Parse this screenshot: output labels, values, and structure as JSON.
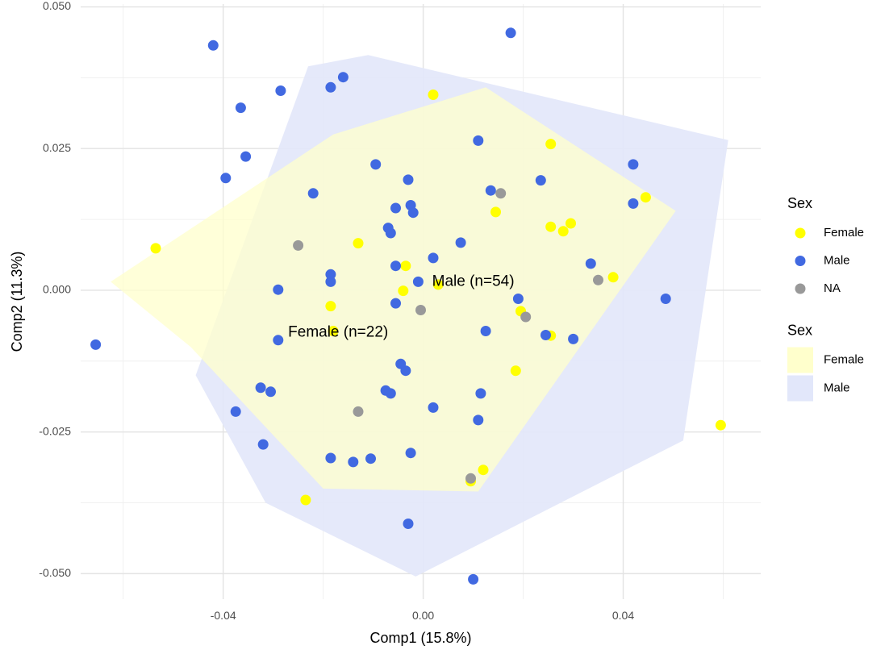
{
  "chart_data": {
    "type": "scatter",
    "xlabel": "Comp1 (15.8%)",
    "ylabel": "Comp2 (11.3%)",
    "xlim": [
      -0.0685,
      0.0675
    ],
    "ylim": [
      -0.0545,
      0.0505
    ],
    "x_ticks": [
      -0.04,
      0.0,
      0.04
    ],
    "x_tick_labels": [
      "-0.04",
      "0.00",
      "0.04"
    ],
    "x_minor_ticks": [
      -0.06,
      -0.02,
      0.02,
      0.06
    ],
    "y_ticks": [
      0.05,
      0.025,
      0.0,
      -0.025,
      -0.05
    ],
    "y_tick_labels": [
      "0.050",
      "0.025",
      "0.000",
      "-0.025",
      "-0.050"
    ],
    "y_minor_ticks": [
      0.0375,
      0.0125,
      -0.0125,
      -0.0375
    ],
    "grid": true,
    "series": [
      {
        "name": "Female",
        "color": "#FFFF00",
        "points": [
          [
            -0.0535,
            0.0074
          ],
          [
            0.002,
            0.0345
          ],
          [
            0.0255,
            0.0258
          ],
          [
            0.0445,
            0.0164
          ],
          [
            0.0145,
            0.0138
          ],
          [
            0.0295,
            0.0118
          ],
          [
            0.0255,
            0.0112
          ],
          [
            0.028,
            0.0104
          ],
          [
            -0.013,
            0.0083
          ],
          [
            -0.0035,
            0.0043
          ],
          [
            0.038,
            0.0023
          ],
          [
            -0.004,
            -0.0001
          ],
          [
            -0.0185,
            -0.0028
          ],
          [
            0.0195,
            -0.0037
          ],
          [
            -0.018,
            -0.0072
          ],
          [
            0.0255,
            -0.008
          ],
          [
            0.0185,
            -0.0142
          ],
          [
            0.0595,
            -0.0238
          ],
          [
            0.012,
            -0.0317
          ],
          [
            0.0095,
            -0.0337
          ],
          [
            -0.0235,
            -0.037
          ],
          [
            0.003,
            0.001
          ]
        ]
      },
      {
        "name": "Male",
        "color": "#4169E1",
        "points": [
          [
            -0.042,
            0.0432
          ],
          [
            0.0175,
            0.0454
          ],
          [
            -0.016,
            0.0376
          ],
          [
            -0.0285,
            0.0352
          ],
          [
            -0.0185,
            0.0358
          ],
          [
            -0.0365,
            0.0322
          ],
          [
            -0.0355,
            0.0236
          ],
          [
            -0.0395,
            0.0198
          ],
          [
            -0.0095,
            0.0222
          ],
          [
            0.011,
            0.0264
          ],
          [
            -0.003,
            0.0195
          ],
          [
            0.0235,
            0.0194
          ],
          [
            0.042,
            0.0222
          ],
          [
            -0.022,
            0.0171
          ],
          [
            0.0135,
            0.0176
          ],
          [
            -0.0055,
            0.0145
          ],
          [
            -0.0025,
            0.015
          ],
          [
            -0.002,
            0.0137
          ],
          [
            0.042,
            0.0153
          ],
          [
            -0.007,
            0.011
          ],
          [
            -0.0065,
            0.0101
          ],
          [
            0.0075,
            0.0084
          ],
          [
            0.002,
            0.0057
          ],
          [
            -0.0055,
            0.0043
          ],
          [
            0.0335,
            0.0047
          ],
          [
            -0.0185,
            0.0028
          ],
          [
            -0.0185,
            0.0015
          ],
          [
            -0.001,
            0.0015
          ],
          [
            -0.029,
            0.0001
          ],
          [
            0.019,
            -0.0015
          ],
          [
            0.0485,
            -0.0015
          ],
          [
            -0.0055,
            -0.0023
          ],
          [
            0.0125,
            -0.0072
          ],
          [
            0.0245,
            -0.0079
          ],
          [
            0.03,
            -0.0086
          ],
          [
            -0.029,
            -0.0088
          ],
          [
            -0.0655,
            -0.0096
          ],
          [
            -0.0045,
            -0.013
          ],
          [
            -0.0035,
            -0.0142
          ],
          [
            -0.0325,
            -0.0172
          ],
          [
            -0.0075,
            -0.0177
          ],
          [
            -0.0065,
            -0.0182
          ],
          [
            -0.0305,
            -0.0179
          ],
          [
            0.0115,
            -0.0182
          ],
          [
            0.002,
            -0.0207
          ],
          [
            -0.0375,
            -0.0214
          ],
          [
            0.011,
            -0.0229
          ],
          [
            -0.032,
            -0.0272
          ],
          [
            -0.0025,
            -0.0287
          ],
          [
            -0.0185,
            -0.0296
          ],
          [
            -0.0105,
            -0.0297
          ],
          [
            -0.014,
            -0.0303
          ],
          [
            -0.003,
            -0.0412
          ],
          [
            0.01,
            -0.051
          ]
        ]
      },
      {
        "name": "NA",
        "color": "#999999",
        "points": [
          [
            0.0155,
            0.0171
          ],
          [
            -0.025,
            0.0079
          ],
          [
            0.035,
            0.0018
          ],
          [
            -0.0005,
            -0.0035
          ],
          [
            0.0205,
            -0.0047
          ],
          [
            -0.013,
            -0.0214
          ],
          [
            0.0095,
            -0.0332
          ]
        ]
      }
    ],
    "hulls": [
      {
        "name": "Female",
        "color": "#FFFFCC",
        "points": [
          [
            -0.0625,
            0.0015
          ],
          [
            -0.018,
            0.0275
          ],
          [
            0.0125,
            0.0358
          ],
          [
            0.0505,
            0.014
          ],
          [
            0.011,
            -0.0355
          ],
          [
            -0.02,
            -0.035
          ],
          [
            -0.0465,
            -0.01
          ]
        ]
      },
      {
        "name": "Male",
        "color": "#E2E7FA",
        "points": [
          [
            -0.023,
            0.0395
          ],
          [
            -0.011,
            0.0415
          ],
          [
            0.061,
            0.0265
          ],
          [
            0.052,
            -0.0265
          ],
          [
            -0.0015,
            -0.0505
          ],
          [
            -0.0315,
            -0.0375
          ],
          [
            -0.0455,
            -0.015
          ]
        ]
      }
    ],
    "annotations": [
      {
        "text": "Male (n=54)",
        "x": 0.01,
        "y": 0.0015
      },
      {
        "text": "Female (n=22)",
        "x": -0.017,
        "y": -0.0075
      }
    ],
    "legends": [
      {
        "title": "Sex",
        "kind": "point",
        "entries": [
          {
            "label": "Female",
            "color": "#FFFF00"
          },
          {
            "label": "Male",
            "color": "#4169E1"
          },
          {
            "label": "NA",
            "color": "#999999"
          }
        ]
      },
      {
        "title": "Sex",
        "kind": "fill",
        "entries": [
          {
            "label": "Female",
            "color": "#FFFFCC"
          },
          {
            "label": "Male",
            "color": "#E2E7FA"
          }
        ]
      }
    ],
    "legend_position": "right"
  }
}
